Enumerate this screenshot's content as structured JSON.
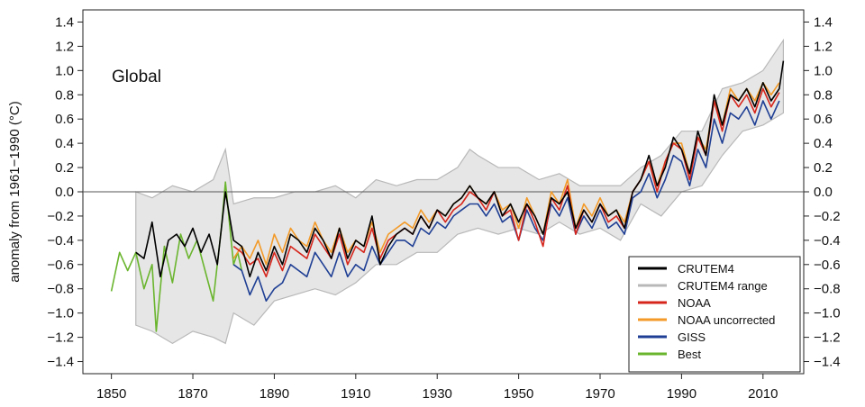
{
  "chart_data": {
    "type": "line",
    "title": "Global",
    "ylabel": "anomaly from 1961−1990 (°C)",
    "xlabel": "",
    "xlim": [
      1843,
      2020
    ],
    "ylim": [
      -1.5,
      1.5
    ],
    "xticks": [
      "1850",
      "1870",
      "1890",
      "1910",
      "1930",
      "1950",
      "1970",
      "1990",
      "2010"
    ],
    "yticks": [
      "1.4",
      "1.2",
      "1.0",
      "0.8",
      "0.6",
      "0.4",
      "0.2",
      "0.0",
      "−0.2",
      "−0.4",
      "−0.6",
      "−0.8",
      "−1.0",
      "−1.2",
      "−1.4"
    ],
    "zero_line": true,
    "legend_position": "bottom-right",
    "legend": [
      "CRUTEM4",
      "CRUTEM4 range",
      "NOAA",
      "NOAA uncorrected",
      "GISS",
      "Best"
    ],
    "range_band": {
      "name": "CRUTEM4 range",
      "color": "#b8b8b8",
      "fill": "#e6e6e6",
      "upper": [
        [
          1856,
          0.0
        ],
        [
          1860,
          -0.05
        ],
        [
          1865,
          0.05
        ],
        [
          1870,
          0.0
        ],
        [
          1875,
          0.1
        ],
        [
          1878,
          0.35
        ],
        [
          1880,
          -0.1
        ],
        [
          1885,
          -0.05
        ],
        [
          1890,
          -0.05
        ],
        [
          1895,
          0.0
        ],
        [
          1900,
          0.0
        ],
        [
          1905,
          0.05
        ],
        [
          1910,
          -0.05
        ],
        [
          1915,
          0.1
        ],
        [
          1920,
          0.05
        ],
        [
          1925,
          0.1
        ],
        [
          1930,
          0.1
        ],
        [
          1935,
          0.2
        ],
        [
          1938,
          0.35
        ],
        [
          1940,
          0.3
        ],
        [
          1945,
          0.2
        ],
        [
          1950,
          0.2
        ],
        [
          1955,
          0.1
        ],
        [
          1960,
          0.15
        ],
        [
          1965,
          0.05
        ],
        [
          1970,
          0.05
        ],
        [
          1975,
          0.05
        ],
        [
          1980,
          0.2
        ],
        [
          1985,
          0.3
        ],
        [
          1990,
          0.5
        ],
        [
          1995,
          0.5
        ],
        [
          2000,
          0.85
        ],
        [
          2005,
          0.9
        ],
        [
          2010,
          1.0
        ],
        [
          2015,
          1.25
        ]
      ],
      "lower": [
        [
          1856,
          -1.1
        ],
        [
          1860,
          -1.15
        ],
        [
          1865,
          -1.25
        ],
        [
          1870,
          -1.15
        ],
        [
          1875,
          -1.2
        ],
        [
          1878,
          -1.25
        ],
        [
          1880,
          -1.0
        ],
        [
          1885,
          -1.1
        ],
        [
          1890,
          -0.9
        ],
        [
          1895,
          -0.85
        ],
        [
          1900,
          -0.8
        ],
        [
          1905,
          -0.85
        ],
        [
          1910,
          -0.75
        ],
        [
          1915,
          -0.6
        ],
        [
          1920,
          -0.6
        ],
        [
          1925,
          -0.5
        ],
        [
          1930,
          -0.5
        ],
        [
          1935,
          -0.35
        ],
        [
          1940,
          -0.3
        ],
        [
          1945,
          -0.35
        ],
        [
          1950,
          -0.3
        ],
        [
          1955,
          -0.35
        ],
        [
          1960,
          -0.25
        ],
        [
          1965,
          -0.35
        ],
        [
          1970,
          -0.3
        ],
        [
          1975,
          -0.4
        ],
        [
          1980,
          -0.1
        ],
        [
          1985,
          -0.2
        ],
        [
          1990,
          0.0
        ],
        [
          1995,
          0.05
        ],
        [
          2000,
          0.3
        ],
        [
          2005,
          0.5
        ],
        [
          2010,
          0.55
        ],
        [
          2015,
          0.65
        ]
      ]
    },
    "series": [
      {
        "name": "Best",
        "color": "#6ab52e",
        "x": [
          1850,
          1852,
          1854,
          1856,
          1858,
          1860,
          1861,
          1863,
          1865,
          1867,
          1869,
          1871,
          1873,
          1875,
          1877,
          1878,
          1880,
          1881,
          1882
        ],
        "values": [
          -0.82,
          -0.5,
          -0.65,
          -0.5,
          -0.8,
          -0.6,
          -1.15,
          -0.45,
          -0.75,
          -0.35,
          -0.55,
          -0.4,
          -0.65,
          -0.9,
          -0.3,
          0.08,
          -0.6,
          -0.5,
          -0.65
        ]
      },
      {
        "name": "CRUTEM4",
        "color": "#000000",
        "x": [
          1856,
          1858,
          1860,
          1862,
          1864,
          1866,
          1868,
          1870,
          1872,
          1874,
          1876,
          1878,
          1880,
          1882,
          1884,
          1886,
          1888,
          1890,
          1892,
          1894,
          1896,
          1898,
          1900,
          1902,
          1904,
          1906,
          1908,
          1910,
          1912,
          1914,
          1916,
          1918,
          1920,
          1922,
          1924,
          1926,
          1928,
          1930,
          1932,
          1934,
          1936,
          1938,
          1940,
          1942,
          1944,
          1946,
          1948,
          1950,
          1952,
          1954,
          1956,
          1958,
          1960,
          1962,
          1964,
          1966,
          1968,
          1970,
          1972,
          1974,
          1976,
          1978,
          1980,
          1982,
          1984,
          1986,
          1988,
          1990,
          1992,
          1994,
          1996,
          1998,
          2000,
          2002,
          2004,
          2006,
          2008,
          2010,
          2012,
          2014,
          2015
        ],
        "values": [
          -0.5,
          -0.55,
          -0.25,
          -0.7,
          -0.4,
          -0.35,
          -0.45,
          -0.3,
          -0.5,
          -0.35,
          -0.6,
          0.0,
          -0.4,
          -0.45,
          -0.7,
          -0.5,
          -0.65,
          -0.45,
          -0.6,
          -0.35,
          -0.4,
          -0.5,
          -0.3,
          -0.4,
          -0.55,
          -0.3,
          -0.55,
          -0.4,
          -0.45,
          -0.2,
          -0.6,
          -0.45,
          -0.35,
          -0.3,
          -0.35,
          -0.2,
          -0.3,
          -0.15,
          -0.2,
          -0.1,
          -0.05,
          0.05,
          -0.05,
          -0.1,
          0.0,
          -0.2,
          -0.1,
          -0.25,
          -0.1,
          -0.2,
          -0.35,
          -0.05,
          -0.1,
          0.0,
          -0.3,
          -0.15,
          -0.25,
          -0.1,
          -0.2,
          -0.15,
          -0.3,
          0.0,
          0.1,
          0.3,
          0.05,
          0.2,
          0.45,
          0.35,
          0.15,
          0.5,
          0.3,
          0.8,
          0.55,
          0.8,
          0.75,
          0.85,
          0.7,
          0.9,
          0.75,
          0.85,
          1.08
        ]
      },
      {
        "name": "NOAA",
        "color": "#d6261c",
        "x": [
          1880,
          1882,
          1884,
          1886,
          1888,
          1890,
          1892,
          1894,
          1896,
          1898,
          1900,
          1902,
          1904,
          1906,
          1908,
          1910,
          1912,
          1914,
          1916,
          1918,
          1920,
          1922,
          1924,
          1926,
          1928,
          1930,
          1932,
          1934,
          1936,
          1938,
          1940,
          1942,
          1944,
          1946,
          1948,
          1950,
          1952,
          1954,
          1956,
          1958,
          1960,
          1962,
          1964,
          1966,
          1968,
          1970,
          1972,
          1974,
          1976,
          1978,
          1980,
          1982,
          1984,
          1986,
          1988,
          1990,
          1992,
          1994,
          1996,
          1998,
          2000,
          2002,
          2004,
          2006,
          2008,
          2010,
          2012,
          2014
        ],
        "values": [
          -0.45,
          -0.5,
          -0.6,
          -0.55,
          -0.7,
          -0.5,
          -0.65,
          -0.45,
          -0.5,
          -0.55,
          -0.35,
          -0.45,
          -0.55,
          -0.35,
          -0.6,
          -0.45,
          -0.5,
          -0.3,
          -0.55,
          -0.4,
          -0.35,
          -0.3,
          -0.35,
          -0.2,
          -0.3,
          -0.15,
          -0.25,
          -0.15,
          -0.1,
          0.0,
          -0.05,
          -0.15,
          0.0,
          -0.2,
          -0.15,
          -0.4,
          -0.1,
          -0.25,
          -0.45,
          -0.05,
          -0.15,
          0.05,
          -0.35,
          -0.15,
          -0.25,
          -0.1,
          -0.25,
          -0.2,
          -0.3,
          0.0,
          0.1,
          0.25,
          0.0,
          0.25,
          0.4,
          0.35,
          0.1,
          0.45,
          0.3,
          0.75,
          0.5,
          0.8,
          0.7,
          0.8,
          0.65,
          0.85,
          0.7,
          0.82
        ]
      },
      {
        "name": "NOAA uncorrected",
        "color": "#f39a28",
        "x": [
          1880,
          1882,
          1884,
          1886,
          1888,
          1890,
          1892,
          1894,
          1896,
          1898,
          1900,
          1902,
          1904,
          1906,
          1908,
          1910,
          1912,
          1914,
          1916,
          1918,
          1920,
          1922,
          1924,
          1926,
          1928,
          1930,
          1932,
          1934,
          1936,
          1938,
          1940,
          1942,
          1944,
          1946,
          1948,
          1950,
          1952,
          1954,
          1956,
          1958,
          1960,
          1962,
          1964,
          1966,
          1968,
          1970,
          1972,
          1974,
          1976,
          1978,
          1980,
          1982,
          1984,
          1986,
          1988,
          1990,
          1992,
          1994,
          1996,
          1998,
          2000,
          2002,
          2004,
          2006,
          2008,
          2010,
          2012,
          2014
        ],
        "values": [
          -0.55,
          -0.45,
          -0.55,
          -0.4,
          -0.6,
          -0.35,
          -0.5,
          -0.3,
          -0.4,
          -0.45,
          -0.25,
          -0.4,
          -0.5,
          -0.3,
          -0.5,
          -0.4,
          -0.45,
          -0.25,
          -0.5,
          -0.35,
          -0.3,
          -0.25,
          -0.3,
          -0.15,
          -0.25,
          -0.15,
          -0.2,
          -0.1,
          -0.05,
          0.05,
          -0.05,
          -0.1,
          0.0,
          -0.15,
          -0.1,
          -0.3,
          -0.05,
          -0.2,
          -0.35,
          0.0,
          -0.1,
          0.1,
          -0.3,
          -0.1,
          -0.2,
          -0.05,
          -0.2,
          -0.15,
          -0.25,
          0.0,
          0.1,
          0.25,
          0.05,
          0.25,
          0.4,
          0.4,
          0.15,
          0.45,
          0.35,
          0.75,
          0.55,
          0.85,
          0.75,
          0.85,
          0.75,
          0.9,
          0.8,
          0.9
        ]
      },
      {
        "name": "GISS",
        "color": "#1f3f94",
        "x": [
          1880,
          1882,
          1884,
          1886,
          1888,
          1890,
          1892,
          1894,
          1896,
          1898,
          1900,
          1902,
          1904,
          1906,
          1908,
          1910,
          1912,
          1914,
          1916,
          1918,
          1920,
          1922,
          1924,
          1926,
          1928,
          1930,
          1932,
          1934,
          1936,
          1938,
          1940,
          1942,
          1944,
          1946,
          1948,
          1950,
          1952,
          1954,
          1956,
          1958,
          1960,
          1962,
          1964,
          1966,
          1968,
          1970,
          1972,
          1974,
          1976,
          1978,
          1980,
          1982,
          1984,
          1986,
          1988,
          1990,
          1992,
          1994,
          1996,
          1998,
          2000,
          2002,
          2004,
          2006,
          2008,
          2010,
          2012,
          2014
        ],
        "values": [
          -0.6,
          -0.65,
          -0.85,
          -0.7,
          -0.9,
          -0.8,
          -0.75,
          -0.6,
          -0.65,
          -0.7,
          -0.5,
          -0.6,
          -0.7,
          -0.5,
          -0.7,
          -0.6,
          -0.65,
          -0.45,
          -0.6,
          -0.5,
          -0.4,
          -0.4,
          -0.45,
          -0.3,
          -0.35,
          -0.25,
          -0.3,
          -0.2,
          -0.15,
          -0.1,
          -0.1,
          -0.2,
          -0.1,
          -0.25,
          -0.2,
          -0.4,
          -0.15,
          -0.3,
          -0.4,
          -0.1,
          -0.2,
          -0.05,
          -0.35,
          -0.2,
          -0.3,
          -0.15,
          -0.3,
          -0.25,
          -0.35,
          -0.05,
          0.0,
          0.15,
          -0.05,
          0.1,
          0.3,
          0.25,
          0.05,
          0.35,
          0.2,
          0.6,
          0.4,
          0.65,
          0.6,
          0.7,
          0.55,
          0.75,
          0.6,
          0.75
        ]
      }
    ]
  }
}
